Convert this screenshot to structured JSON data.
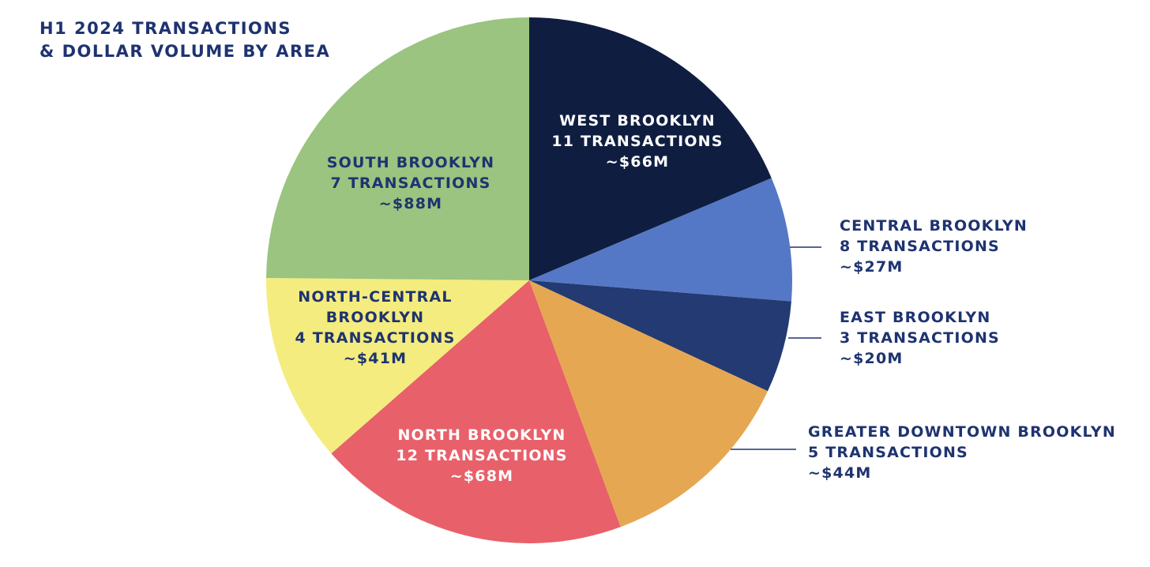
{
  "chart_data": {
    "type": "pie",
    "title": [
      "H1 2024 TRANSACTIONS",
      "& DOLLAR VOLUME BY AREA"
    ],
    "categories": [
      "WEST BROOKLYN",
      "CENTRAL BROOKLYN",
      "EAST BROOKLYN",
      "GREATER DOWNTOWN BROOKLYN",
      "NORTH BROOKLYN",
      "NORTH-CENTRAL BROOKLYN",
      "SOUTH BROOKLYN"
    ],
    "transaction_labels": [
      "11 TRANSACTIONS",
      "8 TRANSACTIONS",
      "3 TRANSACTIONS",
      "5 TRANSACTIONS",
      "12 TRANSACTIONS",
      "4 TRANSACTIONS",
      "7 TRANSACTIONS"
    ],
    "values": [
      66,
      27,
      20,
      44,
      68,
      41,
      88
    ],
    "value_labels": [
      "~$66M",
      "~$27M",
      "~$20M",
      "~$44M",
      "~$68M",
      "~$41M",
      "~$88M"
    ],
    "colors": [
      "#0f1e40",
      "#5478c6",
      "#233a72",
      "#e6a752",
      "#e8606a",
      "#f4ec7e",
      "#9ac47f"
    ]
  }
}
